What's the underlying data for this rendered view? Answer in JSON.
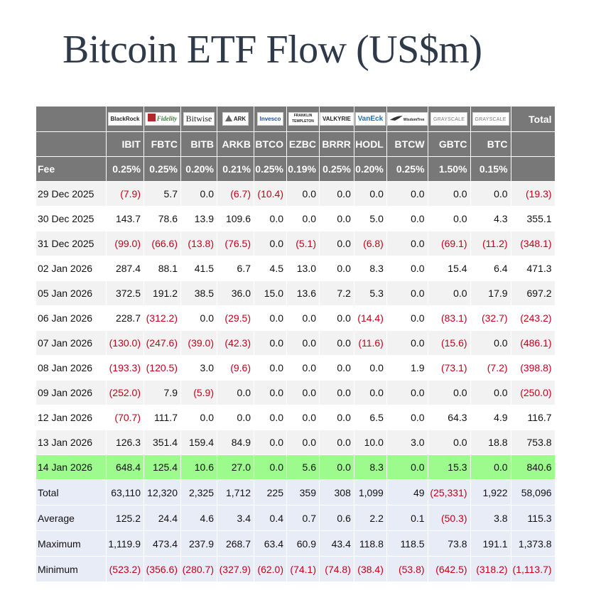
{
  "title": "Bitcoin ETF Flow (US$m)",
  "issuers": [
    {
      "name": "BlackRock",
      "icon": "blackrock-logo"
    },
    {
      "name": "Fidelity",
      "icon": "fidelity-logo"
    },
    {
      "name": "Bitwise",
      "icon": "bitwise-logo"
    },
    {
      "name": "ARK",
      "icon": "ark-logo"
    },
    {
      "name": "Invesco",
      "icon": "invesco-logo"
    },
    {
      "name": "FRANKLIN TEMPLETON",
      "icon": "franklin-templeton-logo"
    },
    {
      "name": "VALKYRIE",
      "icon": "valkyrie-logo"
    },
    {
      "name": "VanEck",
      "icon": "vaneck-logo"
    },
    {
      "name": "WisdomTree",
      "icon": "wisdomtree-logo"
    },
    {
      "name": "GRAYSCALE",
      "icon": "grayscale-logo"
    },
    {
      "name": "GRAYSCALE",
      "icon": "grayscale-logo"
    }
  ],
  "total_header": "Total",
  "tickers": [
    "IBIT",
    "FBTC",
    "BITB",
    "ARKB",
    "BTCO",
    "EZBC",
    "BRRR",
    "HODL",
    "BTCW",
    "GBTC",
    "BTC"
  ],
  "fee_label": "Fee",
  "fees": [
    "0.25%",
    "0.25%",
    "0.20%",
    "0.21%",
    "0.25%",
    "0.19%",
    "0.25%",
    "0.20%",
    "0.25%",
    "1.50%",
    "0.15%"
  ],
  "rows": [
    {
      "date": "29 Dec 2025",
      "values": [
        "(7.9)",
        "5.7",
        "0.0",
        "(6.7)",
        "(10.4)",
        "0.0",
        "0.0",
        "0.0",
        "0.0",
        "0.0",
        "0.0"
      ],
      "total": "(19.3)"
    },
    {
      "date": "30 Dec 2025",
      "values": [
        "143.7",
        "78.6",
        "13.9",
        "109.6",
        "0.0",
        "0.0",
        "0.0",
        "5.0",
        "0.0",
        "0.0",
        "4.3"
      ],
      "total": "355.1"
    },
    {
      "date": "31 Dec 2025",
      "values": [
        "(99.0)",
        "(66.6)",
        "(13.8)",
        "(76.5)",
        "0.0",
        "(5.1)",
        "0.0",
        "(6.8)",
        "0.0",
        "(69.1)",
        "(11.2)"
      ],
      "total": "(348.1)"
    },
    {
      "date": "02 Jan 2026",
      "values": [
        "287.4",
        "88.1",
        "41.5",
        "6.7",
        "4.5",
        "13.0",
        "0.0",
        "8.3",
        "0.0",
        "15.4",
        "6.4"
      ],
      "total": "471.3"
    },
    {
      "date": "05 Jan 2026",
      "values": [
        "372.5",
        "191.2",
        "38.5",
        "36.0",
        "15.0",
        "13.6",
        "7.2",
        "5.3",
        "0.0",
        "0.0",
        "17.9"
      ],
      "total": "697.2"
    },
    {
      "date": "06 Jan 2026",
      "values": [
        "228.7",
        "(312.2)",
        "0.0",
        "(29.5)",
        "0.0",
        "0.0",
        "0.0",
        "(14.4)",
        "0.0",
        "(83.1)",
        "(32.7)"
      ],
      "total": "(243.2)"
    },
    {
      "date": "07 Jan 2026",
      "values": [
        "(130.0)",
        "(247.6)",
        "(39.0)",
        "(42.3)",
        "0.0",
        "0.0",
        "0.0",
        "(11.6)",
        "0.0",
        "(15.6)",
        "0.0"
      ],
      "total": "(486.1)"
    },
    {
      "date": "08 Jan 2026",
      "values": [
        "(193.3)",
        "(120.5)",
        "3.0",
        "(9.6)",
        "0.0",
        "0.0",
        "0.0",
        "0.0",
        "1.9",
        "(73.1)",
        "(7.2)"
      ],
      "total": "(398.8)"
    },
    {
      "date": "09 Jan 2026",
      "values": [
        "(252.0)",
        "7.9",
        "(5.9)",
        "0.0",
        "0.0",
        "0.0",
        "0.0",
        "0.0",
        "0.0",
        "0.0",
        "0.0"
      ],
      "total": "(250.0)"
    },
    {
      "date": "12 Jan 2026",
      "values": [
        "(70.7)",
        "111.7",
        "0.0",
        "0.0",
        "0.0",
        "0.0",
        "0.0",
        "6.5",
        "0.0",
        "64.3",
        "4.9"
      ],
      "total": "116.7"
    },
    {
      "date": "13 Jan 2026",
      "values": [
        "126.3",
        "351.4",
        "159.4",
        "84.9",
        "0.0",
        "0.0",
        "0.0",
        "10.0",
        "3.0",
        "0.0",
        "18.8"
      ],
      "total": "753.8"
    },
    {
      "date": "14 Jan 2026",
      "values": [
        "648.4",
        "125.4",
        "10.6",
        "27.0",
        "0.0",
        "5.6",
        "0.0",
        "8.3",
        "0.0",
        "15.3",
        "0.0"
      ],
      "total": "840.6",
      "highlight": true
    }
  ],
  "stats": [
    {
      "label": "Total",
      "values": [
        "63,110",
        "12,320",
        "2,325",
        "1,712",
        "225",
        "359",
        "308",
        "1,099",
        "49",
        "(25,331)",
        "1,922"
      ],
      "total": "58,096"
    },
    {
      "label": "Average",
      "values": [
        "125.2",
        "24.4",
        "4.6",
        "3.4",
        "0.4",
        "0.7",
        "0.6",
        "2.2",
        "0.1",
        "(50.3)",
        "3.8"
      ],
      "total": "115.3"
    },
    {
      "label": "Maximum",
      "values": [
        "1,119.9",
        "473.4",
        "237.9",
        "268.7",
        "63.4",
        "60.9",
        "43.4",
        "118.8",
        "118.5",
        "73.8",
        "191.1"
      ],
      "total": "1,373.8"
    },
    {
      "label": "Minimum",
      "values": [
        "(523.2)",
        "(356.6)",
        "(280.7)",
        "(327.9)",
        "(62.0)",
        "(74.1)",
        "(74.8)",
        "(38.4)",
        "(53.8)",
        "(642.5)",
        "(318.2)"
      ],
      "total": "(1,113.7)"
    }
  ],
  "colors": {
    "header_bg": "#787878",
    "negative": "#c4001a",
    "highlight_row": "#9dfa8c",
    "stats_bg": "#e8ecf6",
    "title": "#2e3a4a"
  }
}
